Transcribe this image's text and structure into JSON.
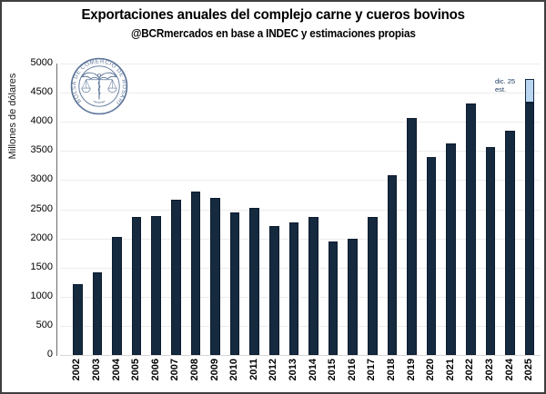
{
  "chart_data": {
    "type": "bar",
    "title": "Exportaciones anuales del complejo carne y cueros bovinos",
    "subtitle": "@BCRmercados en base a INDEC y estimaciones propias",
    "ylabel": "Millones de dólares",
    "ylim": [
      0,
      5000
    ],
    "ytick_step": 500,
    "yticks": [
      0,
      500,
      1000,
      1500,
      2000,
      2500,
      3000,
      3500,
      4000,
      4500,
      5000
    ],
    "grid": true,
    "legend": false,
    "categories": [
      "2002",
      "2003",
      "2004",
      "2005",
      "2006",
      "2007",
      "2008",
      "2009",
      "2010",
      "2011",
      "2012",
      "2013",
      "2014",
      "2015",
      "2016",
      "2017",
      "2018",
      "2019",
      "2020",
      "2021",
      "2022",
      "2023",
      "2024",
      "2025"
    ],
    "values": [
      1220,
      1410,
      2020,
      2370,
      2390,
      2670,
      2800,
      2690,
      2450,
      2530,
      2210,
      2280,
      2370,
      1940,
      1990,
      2370,
      3090,
      4070,
      3400,
      3630,
      4310,
      3570,
      3840,
      4740
    ],
    "estimate_segment": {
      "category": "2025",
      "confirmed_value": 4330,
      "estimated_total": 4740,
      "fill_color": "#b9d5f0",
      "label_line1": "dic. 25",
      "label_line2": "est."
    },
    "bar_color": "#15293f",
    "gridline_color": "#ececec"
  },
  "logo": {
    "ring_text": "BOLSA DE COMERCIO DE ROSARIO",
    "color": "#44608a"
  }
}
